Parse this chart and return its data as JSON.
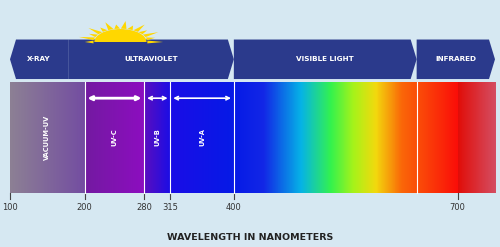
{
  "background_color": "#d6e8f2",
  "title": "WAVELENGTH IN NANOMETERS",
  "wavelength_min": 100,
  "wavelength_max": 750,
  "tick_positions": [
    100,
    200,
    280,
    315,
    400,
    700
  ],
  "header_color": "#2b3a8c",
  "header_bands": [
    {
      "label": "X-RAY",
      "wmin": 100,
      "wmax": 178,
      "left_tip": true,
      "right_tip": false
    },
    {
      "label": "ULTRAVIOLET",
      "wmin": 178,
      "wmax": 400,
      "left_tip": false,
      "right_tip": true
    },
    {
      "label": "VISIBLE LIGHT",
      "wmin": 400,
      "wmax": 645,
      "left_tip": false,
      "right_tip": true
    },
    {
      "label": "INFRARED",
      "wmin": 645,
      "wmax": 750,
      "left_tip": false,
      "right_tip": true
    }
  ],
  "uv_subs": [
    {
      "label": "VACUUM-UV",
      "wmin": 100,
      "wmax": 200
    },
    {
      "label": "UV-C",
      "wmin": 200,
      "wmax": 280
    },
    {
      "label": "UV-B",
      "wmin": 280,
      "wmax": 315
    },
    {
      "label": "UV-A",
      "wmin": 315,
      "wmax": 400
    }
  ],
  "arrows": [
    {
      "wmin": 200,
      "wmax": 280,
      "lw": 2.0
    },
    {
      "wmin": 280,
      "wmax": 315,
      "lw": 1.2
    },
    {
      "wmin": 315,
      "wmax": 400,
      "lw": 1.2
    }
  ],
  "sun_wl": 248,
  "sun_color": "#FFD700",
  "dividers": [
    200,
    280,
    315,
    400,
    645
  ]
}
